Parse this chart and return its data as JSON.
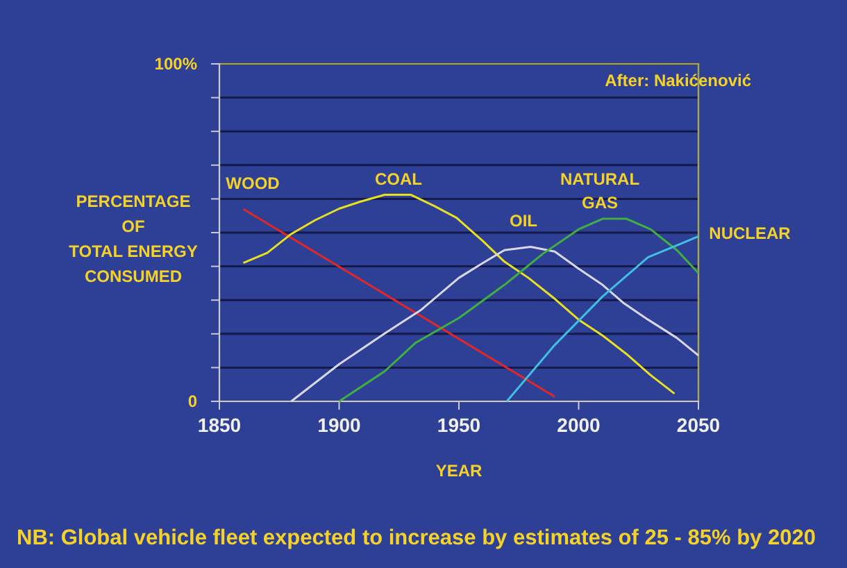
{
  "chart_data": {
    "type": "line",
    "ylabel": "PERCENTAGE\nOF\nTOTAL ENERGY\nCONSUMED",
    "xlabel": "YEAR",
    "xlim": [
      1850,
      2050
    ],
    "xticks": [
      1850,
      1900,
      1950,
      2000,
      2050
    ],
    "ylim": [
      0,
      100
    ],
    "yticks": [
      0,
      {
        "value": 10,
        "label": null
      },
      {
        "value": 20,
        "label": null
      },
      {
        "value": 30,
        "label": null
      },
      {
        "value": 40,
        "label": null
      },
      {
        "value": 50,
        "label": null
      },
      {
        "value": 60,
        "label": null
      },
      {
        "value": 70,
        "label": null
      },
      {
        "value": 80,
        "label": null
      },
      {
        "value": 90,
        "label": null
      },
      {
        "value": 100,
        "label": "100%"
      }
    ],
    "grid": "y",
    "legend": false,
    "annotations": [
      "After: Nakićenović",
      "NB: Global vehicle fleet expected to increase by estimates of 25 - 85% by 2020"
    ],
    "series": [
      {
        "name": "WOOD",
        "color": "#e02828",
        "x": [
          1860,
          1990
        ],
        "values": [
          57,
          1.4
        ]
      },
      {
        "name": "COAL",
        "color": "#e8e020",
        "x": [
          1860,
          1870,
          1880,
          1890,
          1900,
          1909,
          1919,
          1930,
          1940,
          1949,
          1960,
          1969,
          1979,
          1990,
          2000,
          2010,
          2020,
          2030,
          2040
        ],
        "values": [
          41,
          44,
          49.6,
          53.7,
          57.1,
          59.2,
          61.2,
          61.2,
          57.8,
          54.4,
          47.5,
          41.4,
          36.6,
          30.4,
          24.2,
          19.5,
          14,
          7.8,
          2.3
        ]
      },
      {
        "name": "OIL",
        "color": "#d8d8e8",
        "x": [
          1880,
          1900,
          1919,
          1934,
          1950,
          1960,
          1969,
          1980,
          1990,
          2000,
          2010,
          2019,
          2029,
          2041,
          2050
        ],
        "values": [
          0,
          11,
          20.1,
          27,
          36.6,
          41,
          44.8,
          45.8,
          44.4,
          39.3,
          34.5,
          29,
          24.2,
          18.8,
          13.6
        ]
      },
      {
        "name": "NATURAL\nGAS",
        "color": "#40b040",
        "x": [
          1900,
          1919,
          1932,
          1950,
          1969,
          1985,
          2000,
          2010,
          2020,
          2030,
          2041,
          2050
        ],
        "values": [
          0,
          8.9,
          17.4,
          24.7,
          34.5,
          43.7,
          51,
          54.1,
          54.1,
          51,
          44.8,
          38
        ]
      },
      {
        "name": "NUCLEAR",
        "color": "#40c0e0",
        "x": [
          1970,
          1990,
          2010,
          2029,
          2041,
          2050
        ],
        "values": [
          0,
          16.7,
          31.1,
          42.7,
          46.2,
          48.9
        ]
      }
    ]
  }
}
